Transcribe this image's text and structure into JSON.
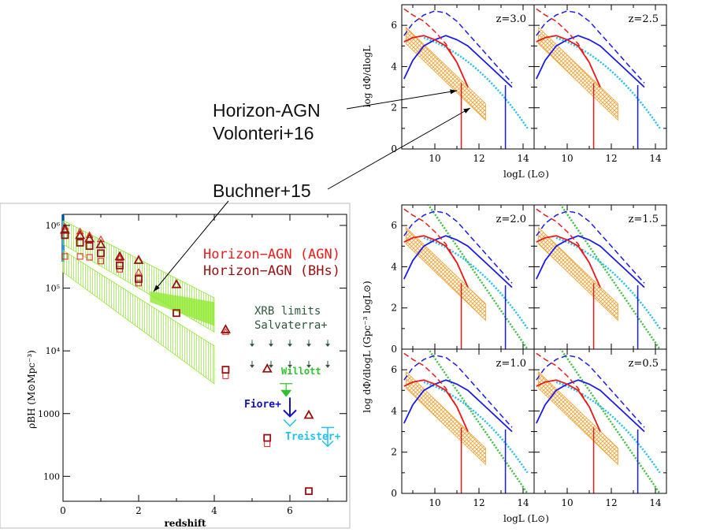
{
  "annotations": {
    "horizon_line1": "Horizon-AGN",
    "horizon_line2": "Volonteri+16",
    "buchner": "Buchner+15"
  },
  "colors": {
    "blue": "#1a1aee",
    "red": "#ee1a1a",
    "darkred": "#9a1010",
    "orange": "#f4a030",
    "green": "#8fe830",
    "cyan": "#20c0f0",
    "darkgreen": "#2e5a3c",
    "lightgreen": "#30c030"
  },
  "chart_data": [
    {
      "type": "scatter",
      "panel": "bh-density",
      "xlabel": "redshift",
      "ylabel": "ρBH (M⊙Mpc⁻³)",
      "xlim": [
        0,
        7.5
      ],
      "ylim": [
        40,
        1500000
      ],
      "yscale": "log",
      "x_ticks": [
        "0",
        "2",
        "4",
        "6"
      ],
      "y_ticks": [
        "10⁶",
        "10⁵",
        "10⁴",
        "1000",
        "100"
      ],
      "legend": [
        "Horizon−AGN (AGN)",
        "Horizon−AGN (BHs)"
      ],
      "labels": {
        "xrb1": "XRB limits",
        "xrb2": "Salvaterra+",
        "willott": "Willott",
        "fiore": "Fiore+",
        "treister": "Treister+"
      },
      "series": [
        {
          "name": "Horizon−AGN (AGN)",
          "marker": "triangle",
          "x": [
            0.05,
            0.45,
            0.7,
            1.0,
            1.5,
            2.0,
            3.0,
            4.3,
            5.4,
            6.5
          ],
          "y": [
            850000,
            700000,
            620000,
            500000,
            320000,
            280000,
            115000,
            22000,
            5200,
            950
          ]
        },
        {
          "name": "Horizon−AGN (BHs)",
          "marker": "square",
          "x": [
            0.05,
            0.45,
            0.7,
            1.0,
            1.5,
            2.0,
            3.0,
            4.3,
            5.4,
            6.5
          ],
          "y": [
            700000,
            530000,
            470000,
            360000,
            230000,
            140000,
            40000,
            5000,
            410,
            58
          ]
        }
      ],
      "light_markers": [
        {
          "marker": "triangle",
          "x": [
            0.05,
            0.45,
            0.7,
            1.0,
            1.5,
            2.0,
            4.3
          ],
          "y": [
            950000,
            800000,
            700000,
            600000,
            300000,
            180000,
            20000
          ]
        },
        {
          "marker": "square",
          "x": [
            0.05,
            0.45,
            0.7,
            1.0,
            1.5,
            2.0,
            4.3,
            5.4
          ],
          "y": [
            320000,
            320000,
            310000,
            270000,
            200000,
            120000,
            4000,
            330
          ]
        }
      ],
      "bands": [
        {
          "name": "green-upper",
          "x": [
            0,
            4
          ],
          "lo": [
            500000,
            20000
          ],
          "hi": [
            1200000,
            70000
          ]
        },
        {
          "name": "green-lower",
          "x": [
            0,
            4
          ],
          "lo": [
            180000,
            3000
          ],
          "hi": [
            400000,
            12000
          ]
        }
      ],
      "xrb_limits": {
        "x": [
          5.0,
          5.5,
          6.0,
          6.5,
          7.0
        ],
        "y_upper": 13000,
        "y_lower": 6000
      },
      "willott": {
        "x": 5.9,
        "y": [
          3000,
          2000
        ]
      },
      "fiore": {
        "x": 6.0,
        "y": [
          1800,
          900
        ]
      },
      "treister": {
        "x": 7.0,
        "y": [
          600,
          300
        ]
      }
    },
    {
      "type": "line",
      "panel": "luminosity-functions",
      "xlabel": "logL (L⊙)",
      "ylabel_top": "log dΦ/dlogL",
      "ylabel_bottom": "log dΦ/dlogL (Gpc⁻³ logL⊙)",
      "xlim": [
        8.5,
        14.5
      ],
      "ylim": [
        0,
        7
      ],
      "x_ticks": [
        "10",
        "12",
        "14"
      ],
      "y_ticks": [
        "0",
        "2",
        "4",
        "6"
      ],
      "panels": [
        {
          "label": "z=3.0"
        },
        {
          "label": "z=2.5"
        },
        {
          "label": "z=2.0"
        },
        {
          "label": "z=1.5"
        },
        {
          "label": "z=1.0"
        },
        {
          "label": "z=0.5"
        }
      ],
      "model_x": [
        8.6,
        9.0,
        9.5,
        10.0,
        10.5,
        11.0,
        11.5,
        12.0,
        12.5,
        13.0,
        13.5
      ],
      "blue_solid_y": [
        3.4,
        4.3,
        5.0,
        5.3,
        5.5,
        5.3,
        5.0,
        4.5,
        4.0,
        3.5,
        3.0
      ],
      "blue_dashed_y": [
        5.5,
        6.1,
        6.5,
        6.7,
        6.6,
        6.2,
        5.6,
        5.0,
        4.4,
        3.8,
        3.2
      ],
      "red_solid_y": [
        5.2,
        5.4,
        5.5,
        5.3,
        5.0,
        4.2,
        3.0
      ],
      "red_dashed_y": [
        6.8,
        6.5,
        6.2,
        5.7,
        5.1,
        4.2,
        3.0
      ],
      "buchner_band": {
        "x": [
          8.7,
          12.3
        ],
        "hi": [
          5.9,
          2.2
        ],
        "lo": [
          5.1,
          1.4
        ]
      },
      "cyan_dotted": {
        "x": [
          9.5,
          14.2
        ],
        "y": [
          5.4,
          1.0
        ]
      },
      "green_dotted": {
        "x": [
          9.2,
          14.2
        ],
        "y": [
          7.8,
          0.0
        ]
      }
    }
  ]
}
